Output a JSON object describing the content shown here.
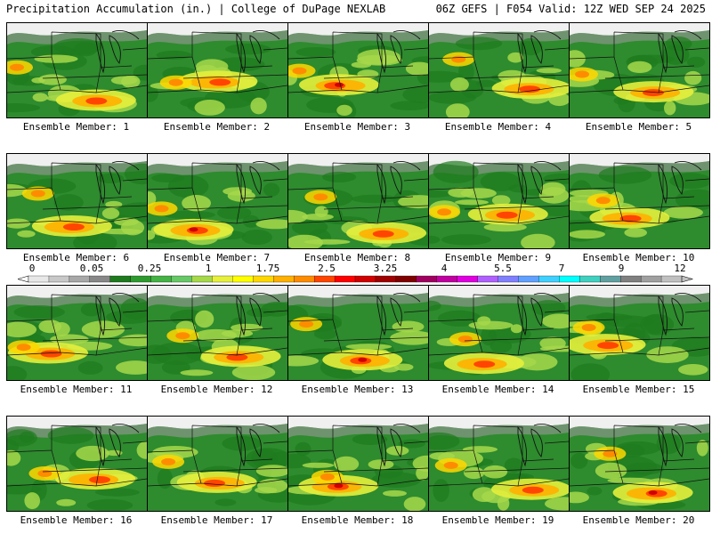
{
  "header": {
    "left": "Precipitation Accumulation (in.) | College of DuPage NEXLAB",
    "right": "06Z GEFS | F054 Valid: 12Z WED SEP 24 2025"
  },
  "colorbar": {
    "labels": [
      "0",
      "0.05",
      "0.25",
      "1",
      "1.75",
      "2.5",
      "3.25",
      "4",
      "5.5",
      "7",
      "9",
      "12"
    ],
    "colors": [
      "#e8e8e8",
      "#c8c8c8",
      "#a8a8a8",
      "#888888",
      "#1e7a1e",
      "#2e9a2e",
      "#44b244",
      "#66c866",
      "#a6d84a",
      "#e6f03c",
      "#ffff00",
      "#ffd700",
      "#ffb000",
      "#ff8c00",
      "#ff4500",
      "#ff0000",
      "#d00000",
      "#a00000",
      "#800000",
      "#a00060",
      "#c000a0",
      "#e000e0",
      "#b060ff",
      "#8080ff",
      "#60a0ff",
      "#40d0ff",
      "#00ffff",
      "#40d0c0",
      "#60a0a0",
      "#808080",
      "#a0a0a0",
      "#c0c0c0"
    ]
  },
  "ensemble_label_prefix": "Ensemble Member: ",
  "members": [
    {
      "label": "Ensemble Member: 1"
    },
    {
      "label": "Ensemble Member: 2"
    },
    {
      "label": "Ensemble Member: 3"
    },
    {
      "label": "Ensemble Member: 4"
    },
    {
      "label": "Ensemble Member: 5"
    },
    {
      "label": "Ensemble Member: 6"
    },
    {
      "label": "Ensemble Member: 7"
    },
    {
      "label": "Ensemble Member: 8"
    },
    {
      "label": "Ensemble Member: 9"
    },
    {
      "label": "Ensemble Member: 10"
    },
    {
      "label": "Ensemble Member: 11"
    },
    {
      "label": "Ensemble Member: 12"
    },
    {
      "label": "Ensemble Member: 13"
    },
    {
      "label": "Ensemble Member: 14"
    },
    {
      "label": "Ensemble Member: 15"
    },
    {
      "label": "Ensemble Member: 16"
    },
    {
      "label": "Ensemble Member: 17"
    },
    {
      "label": "Ensemble Member: 18"
    },
    {
      "label": "Ensemble Member: 19"
    },
    {
      "label": "Ensemble Member: 20"
    }
  ]
}
